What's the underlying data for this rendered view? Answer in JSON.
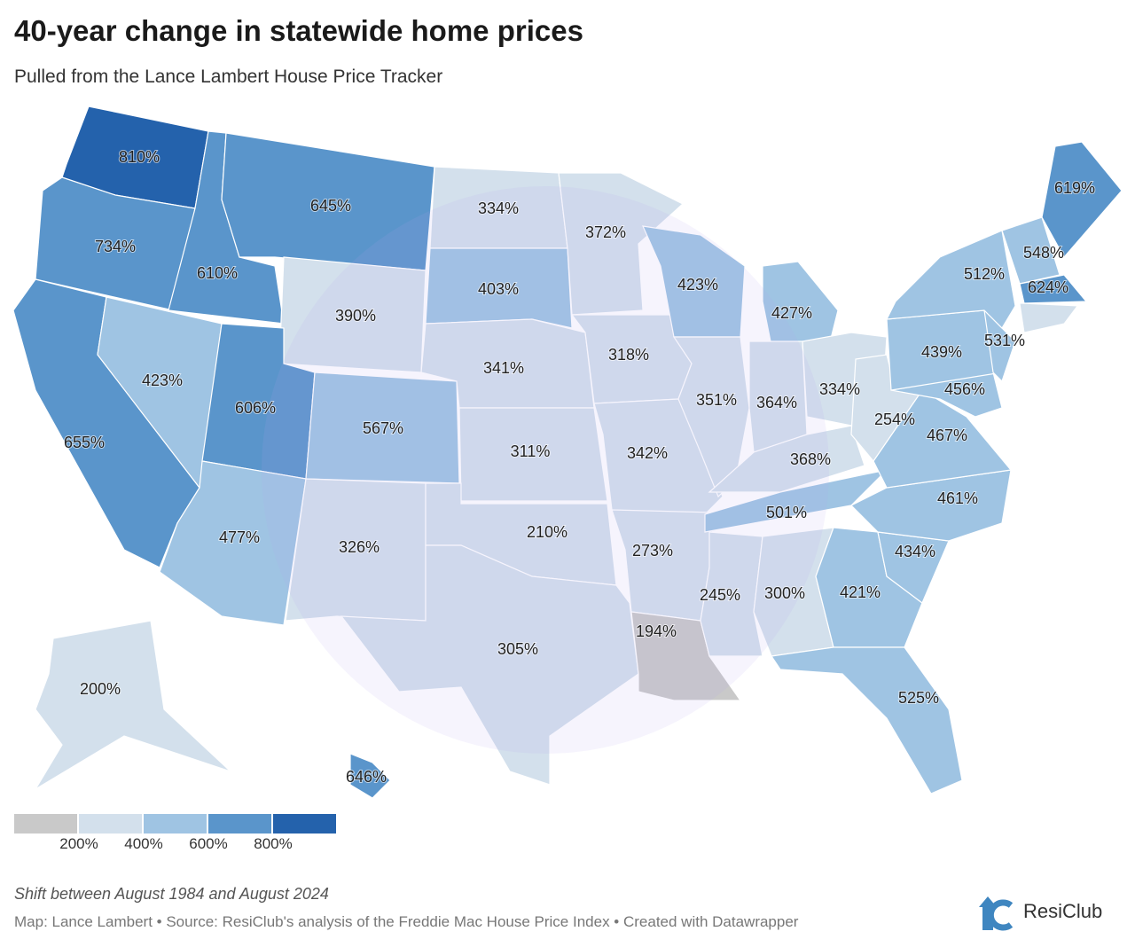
{
  "title": "40-year change in statewide home prices",
  "subtitle": "Pulled from the Lance Lambert House Price Tracker",
  "colors": {
    "below_200": "#c9c9c9",
    "200_400": "#d3e0ec",
    "400_600": "#9fc4e3",
    "600_800": "#5a95cb",
    "above_800": "#2462ac",
    "border": "#ffffff"
  },
  "legend": {
    "ticks": [
      "200%",
      "400%",
      "600%",
      "800%"
    ]
  },
  "states": {
    "WA": "810%",
    "OR": "734%",
    "CA": "655%",
    "ID": "610%",
    "MT": "645%",
    "WY": "390%",
    "NV": "423%",
    "UT": "606%",
    "CO": "567%",
    "AZ": "477%",
    "NM": "326%",
    "ND": "334%",
    "SD": "403%",
    "NE": "341%",
    "KS": "311%",
    "OK": "210%",
    "TX": "305%",
    "MN": "372%",
    "IA": "318%",
    "MO": "342%",
    "AR": "273%",
    "LA": "194%",
    "WI": "423%",
    "IL": "351%",
    "MI": "427%",
    "IN": "364%",
    "OH": "334%",
    "KY": "368%",
    "TN": "501%",
    "MS": "245%",
    "AL": "300%",
    "GA": "421%",
    "FL": "525%",
    "SC": "434%",
    "NC": "461%",
    "VA": "467%",
    "WV": "254%",
    "MD": "456%",
    "PA": "439%",
    "NJ": "531%",
    "NY": "512%",
    "NH": "548%",
    "MA": "624%",
    "ME": "619%",
    "AK": "200%",
    "HI": "646%"
  },
  "note": "Shift between August 1984 and August 2024",
  "source": "Map: Lance Lambert • Source: ResiClub's analysis of the Freddie Mac House Price Index • Created with Datawrapper",
  "logo": {
    "text": "ResiClub",
    "mark": "RC"
  }
}
